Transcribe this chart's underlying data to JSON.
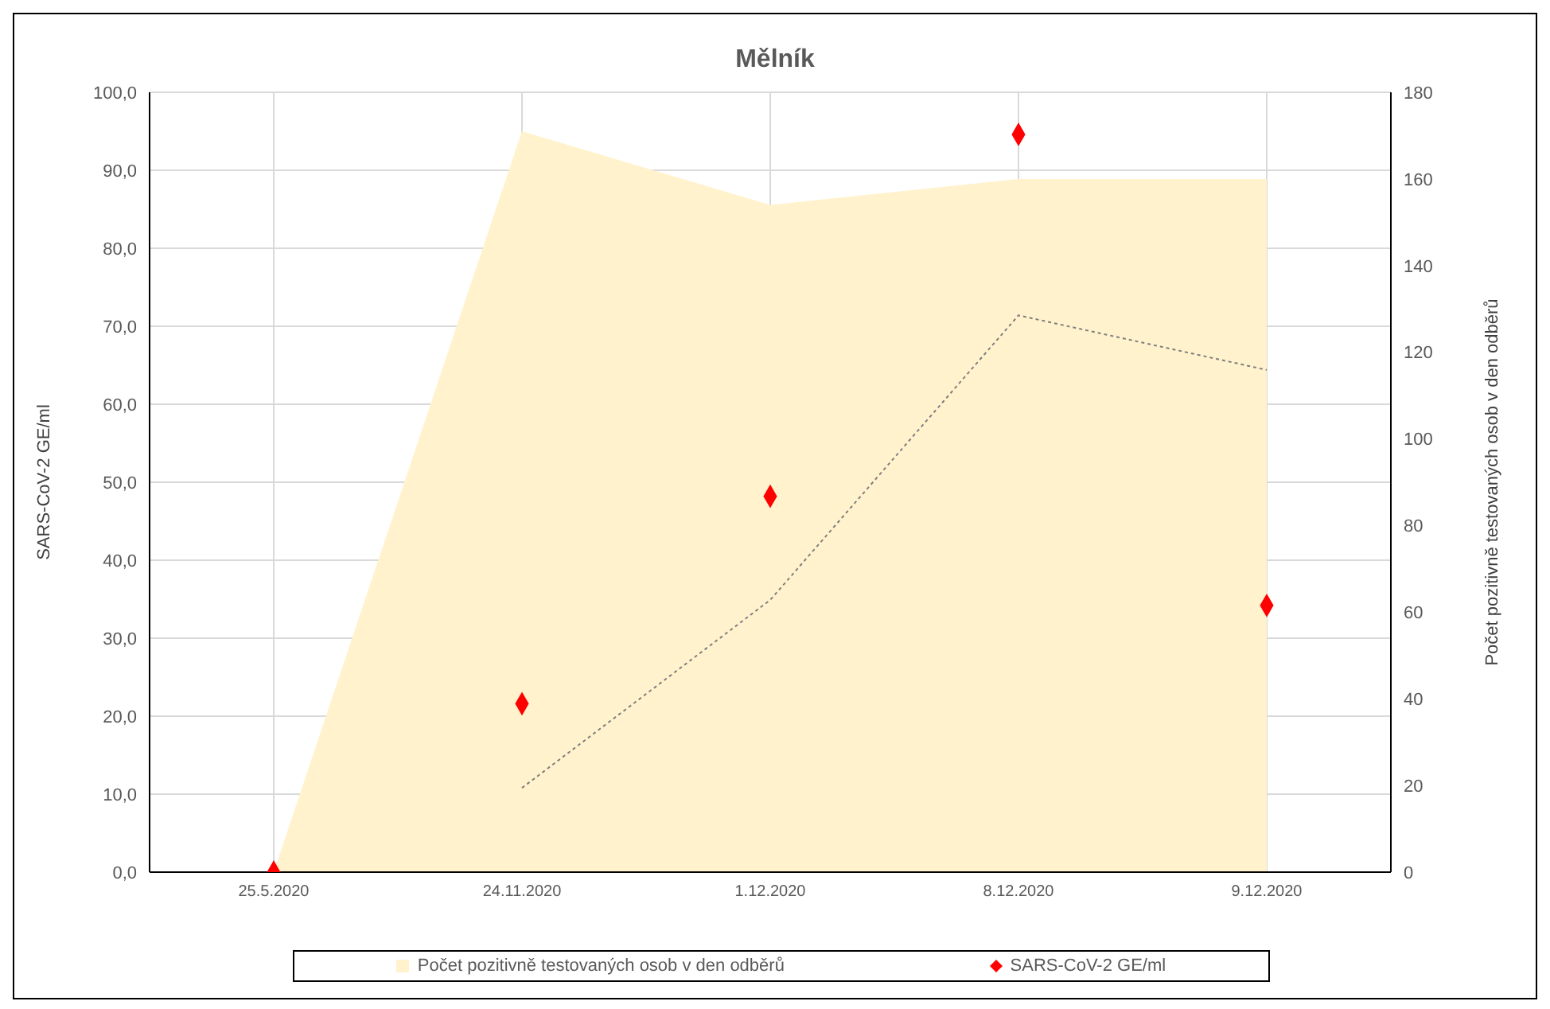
{
  "chart_data": {
    "type": "area",
    "title": "Mělník",
    "ylabel": "SARS-CoV-2 GE/ml",
    "y2label": "Počet pozitivně testovaných osob v den odběrů",
    "categories": [
      "25.5.2020",
      "24.11.2020",
      "1.12.2020",
      "8.12.2020",
      "9.12.2020"
    ],
    "series": [
      {
        "name": "Počet pozitivně testovaných osob v den odběrů",
        "color": "#fff2cc",
        "axis": "y2",
        "values": [
          0,
          171,
          154,
          160,
          160
        ]
      },
      {
        "type": "line",
        "color": "#7f7f7f",
        "line_style": "dotted",
        "marker": "none",
        "values": [
          null,
          10.8,
          34.9,
          71.4,
          64.4
        ]
      },
      {
        "type": "scatter",
        "name": "SARS-CoV-2 GE/ml",
        "color": "#ff0000",
        "marker": "diamond",
        "values": [
          0,
          21.6,
          48.2,
          94.6,
          34.2
        ]
      }
    ],
    "ylim": [
      0,
      100
    ],
    "yticks": [
      {
        "value": 0,
        "label": "0,0"
      },
      {
        "value": 10,
        "label": "10,0"
      },
      {
        "value": 20,
        "label": "20,0"
      },
      {
        "value": 30,
        "label": "30,0"
      },
      {
        "value": 40,
        "label": "40,0"
      },
      {
        "value": 50,
        "label": "50,0"
      },
      {
        "value": 60,
        "label": "60,0"
      },
      {
        "value": 70,
        "label": "70,0"
      },
      {
        "value": 80,
        "label": "80,0"
      },
      {
        "value": 90,
        "label": "90,0"
      },
      {
        "value": 100,
        "label": "100,0"
      }
    ],
    "y2lim": [
      0,
      180
    ],
    "y2ticks": [
      0,
      20,
      40,
      60,
      80,
      100,
      120,
      140,
      160,
      180
    ],
    "grid": true,
    "legend": "bottom"
  }
}
